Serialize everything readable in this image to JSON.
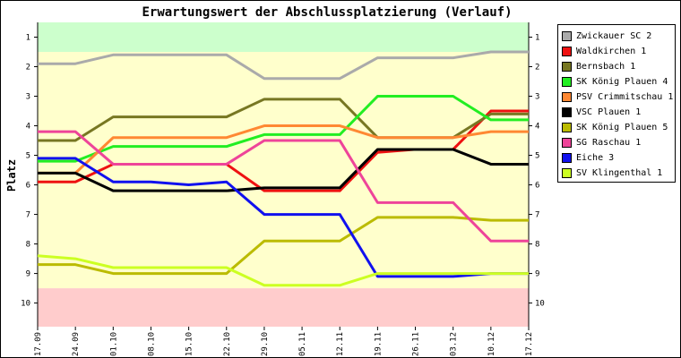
{
  "chart_data": {
    "type": "line",
    "title": "Erwartungswert der Abschlussplatzierung (Verlauf)",
    "ylabel": "Platz",
    "xlabel": "",
    "x": [
      "17.09",
      "24.09",
      "01.10",
      "08.10",
      "15.10",
      "22.10",
      "29.10",
      "05.11",
      "12.11",
      "19.11",
      "26.11",
      "03.12",
      "10.12",
      "17.12"
    ],
    "yticks": [
      1,
      2,
      3,
      4,
      5,
      6,
      7,
      8,
      9,
      10
    ],
    "ylim": [
      10.8,
      0.5
    ],
    "y_inverted": true,
    "bands": [
      {
        "from": 0.5,
        "to": 1.5,
        "color": "#ccffcc"
      },
      {
        "from": 1.5,
        "to": 9.5,
        "color": "#ffffcc"
      },
      {
        "from": 9.5,
        "to": 10.8,
        "color": "#ffcccc"
      }
    ],
    "legend_position": "right",
    "grid": false,
    "series": [
      {
        "name": "Zwickauer SC 2",
        "color": "#aaaaaa",
        "values": [
          1.9,
          1.9,
          1.6,
          1.6,
          1.6,
          1.6,
          2.4,
          2.4,
          2.4,
          1.7,
          1.7,
          1.7,
          1.5,
          1.5
        ]
      },
      {
        "name": "Waldkirchen 1",
        "color": "#ee1111",
        "values": [
          5.9,
          5.9,
          5.3,
          5.3,
          5.3,
          5.3,
          6.2,
          6.2,
          6.2,
          4.9,
          4.8,
          4.8,
          3.5,
          3.5
        ]
      },
      {
        "name": "Bernsbach 1",
        "color": "#777722",
        "values": [
          4.5,
          4.5,
          3.7,
          3.7,
          3.7,
          3.7,
          3.1,
          3.1,
          3.1,
          4.4,
          4.4,
          4.4,
          3.6,
          3.6
        ]
      },
      {
        "name": "SK König Plauen 4",
        "color": "#22ee22",
        "values": [
          5.2,
          5.2,
          4.7,
          4.7,
          4.7,
          4.7,
          4.3,
          4.3,
          4.3,
          3.0,
          3.0,
          3.0,
          3.8,
          3.8
        ]
      },
      {
        "name": "PSV Crimmitschau 1",
        "color": "#ff8833",
        "values": [
          5.6,
          5.6,
          4.4,
          4.4,
          4.4,
          4.4,
          4.0,
          4.0,
          4.0,
          4.4,
          4.4,
          4.4,
          4.2,
          4.2
        ]
      },
      {
        "name": "VSC Plauen 1",
        "color": "#000000",
        "values": [
          5.6,
          5.6,
          6.2,
          6.2,
          6.2,
          6.2,
          6.1,
          6.1,
          6.1,
          4.8,
          4.8,
          4.8,
          5.3,
          5.3
        ]
      },
      {
        "name": "SK König Plauen 5",
        "color": "#bbbb00",
        "values": [
          8.7,
          8.7,
          9.0,
          9.0,
          9.0,
          9.0,
          7.9,
          7.9,
          7.9,
          7.1,
          7.1,
          7.1,
          7.2,
          7.2
        ]
      },
      {
        "name": "SG Raschau 1",
        "color": "#ee4499",
        "values": [
          4.2,
          4.2,
          5.3,
          5.3,
          5.3,
          5.3,
          4.5,
          4.5,
          4.5,
          6.6,
          6.6,
          6.6,
          7.9,
          7.9
        ]
      },
      {
        "name": "Eiche 3",
        "color": "#1111ee",
        "values": [
          5.1,
          5.1,
          5.9,
          5.9,
          6.0,
          5.9,
          7.0,
          7.0,
          7.0,
          9.1,
          9.1,
          9.1,
          9.0,
          9.0
        ]
      },
      {
        "name": "SV Klingenthal 1",
        "color": "#ccff22",
        "values": [
          8.4,
          8.5,
          8.8,
          8.8,
          8.8,
          8.8,
          9.4,
          9.4,
          9.4,
          9.0,
          9.0,
          9.0,
          9.0,
          9.0
        ]
      }
    ]
  }
}
